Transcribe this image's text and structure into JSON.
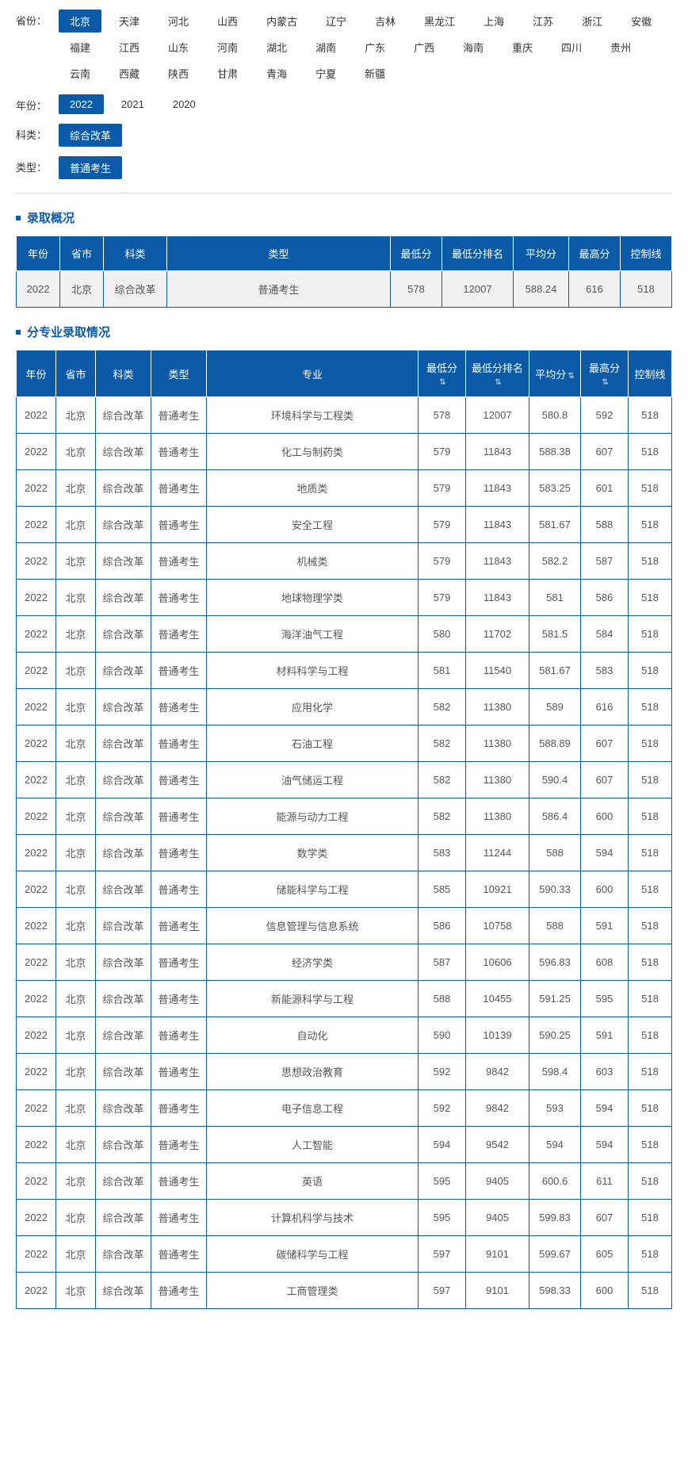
{
  "filters": {
    "province": {
      "label": "省份：",
      "options": [
        "北京",
        "天津",
        "河北",
        "山西",
        "内蒙古",
        "辽宁",
        "吉林",
        "黑龙江",
        "上海",
        "江苏",
        "浙江",
        "安徽",
        "福建",
        "江西",
        "山东",
        "河南",
        "湖北",
        "湖南",
        "广东",
        "广西",
        "海南",
        "重庆",
        "四川",
        "贵州",
        "云南",
        "西藏",
        "陕西",
        "甘肃",
        "青海",
        "宁夏",
        "新疆"
      ],
      "active": 0
    },
    "year": {
      "label": "年份：",
      "options": [
        "2022",
        "2021",
        "2020"
      ],
      "active": 0
    },
    "subject": {
      "label": "科类：",
      "options": [
        "综合改革"
      ],
      "active": 0
    },
    "type": {
      "label": "类型：",
      "options": [
        "普通考生"
      ],
      "active": 0
    }
  },
  "overview": {
    "title": "录取概况",
    "columns": [
      "年份",
      "省市",
      "科类",
      "类型",
      "最低分",
      "最低分排名",
      "平均分",
      "最高分",
      "控制线"
    ],
    "rows": [
      [
        "2022",
        "北京",
        "综合改革",
        "普通考生",
        "578",
        "12007",
        "588.24",
        "616",
        "518"
      ]
    ]
  },
  "detail": {
    "title": "分专业录取情况",
    "columns": [
      "年份",
      "省市",
      "科类",
      "类型",
      "专业",
      "最低分",
      "最低分排名",
      "平均分",
      "最高分",
      "控制线"
    ],
    "sortable": [
      false,
      false,
      false,
      false,
      false,
      true,
      true,
      true,
      true,
      false
    ],
    "rows": [
      [
        "2022",
        "北京",
        "综合改革",
        "普通考生",
        "环境科学与工程类",
        "578",
        "12007",
        "580.8",
        "592",
        "518"
      ],
      [
        "2022",
        "北京",
        "综合改革",
        "普通考生",
        "化工与制药类",
        "579",
        "11843",
        "588.38",
        "607",
        "518"
      ],
      [
        "2022",
        "北京",
        "综合改革",
        "普通考生",
        "地质类",
        "579",
        "11843",
        "583.25",
        "601",
        "518"
      ],
      [
        "2022",
        "北京",
        "综合改革",
        "普通考生",
        "安全工程",
        "579",
        "11843",
        "581.67",
        "588",
        "518"
      ],
      [
        "2022",
        "北京",
        "综合改革",
        "普通考生",
        "机械类",
        "579",
        "11843",
        "582.2",
        "587",
        "518"
      ],
      [
        "2022",
        "北京",
        "综合改革",
        "普通考生",
        "地球物理学类",
        "579",
        "11843",
        "581",
        "586",
        "518"
      ],
      [
        "2022",
        "北京",
        "综合改革",
        "普通考生",
        "海洋油气工程",
        "580",
        "11702",
        "581.5",
        "584",
        "518"
      ],
      [
        "2022",
        "北京",
        "综合改革",
        "普通考生",
        "材料科学与工程",
        "581",
        "11540",
        "581.67",
        "583",
        "518"
      ],
      [
        "2022",
        "北京",
        "综合改革",
        "普通考生",
        "应用化学",
        "582",
        "11380",
        "589",
        "616",
        "518"
      ],
      [
        "2022",
        "北京",
        "综合改革",
        "普通考生",
        "石油工程",
        "582",
        "11380",
        "588.89",
        "607",
        "518"
      ],
      [
        "2022",
        "北京",
        "综合改革",
        "普通考生",
        "油气储运工程",
        "582",
        "11380",
        "590.4",
        "607",
        "518"
      ],
      [
        "2022",
        "北京",
        "综合改革",
        "普通考生",
        "能源与动力工程",
        "582",
        "11380",
        "586.4",
        "600",
        "518"
      ],
      [
        "2022",
        "北京",
        "综合改革",
        "普通考生",
        "数学类",
        "583",
        "11244",
        "588",
        "594",
        "518"
      ],
      [
        "2022",
        "北京",
        "综合改革",
        "普通考生",
        "储能科学与工程",
        "585",
        "10921",
        "590.33",
        "600",
        "518"
      ],
      [
        "2022",
        "北京",
        "综合改革",
        "普通考生",
        "信息管理与信息系统",
        "586",
        "10758",
        "588",
        "591",
        "518"
      ],
      [
        "2022",
        "北京",
        "综合改革",
        "普通考生",
        "经济学类",
        "587",
        "10606",
        "596.83",
        "608",
        "518"
      ],
      [
        "2022",
        "北京",
        "综合改革",
        "普通考生",
        "新能源科学与工程",
        "588",
        "10455",
        "591.25",
        "595",
        "518"
      ],
      [
        "2022",
        "北京",
        "综合改革",
        "普通考生",
        "自动化",
        "590",
        "10139",
        "590.25",
        "591",
        "518"
      ],
      [
        "2022",
        "北京",
        "综合改革",
        "普通考生",
        "思想政治教育",
        "592",
        "9842",
        "598.4",
        "603",
        "518"
      ],
      [
        "2022",
        "北京",
        "综合改革",
        "普通考生",
        "电子信息工程",
        "592",
        "9842",
        "593",
        "594",
        "518"
      ],
      [
        "2022",
        "北京",
        "综合改革",
        "普通考生",
        "人工智能",
        "594",
        "9542",
        "594",
        "594",
        "518"
      ],
      [
        "2022",
        "北京",
        "综合改革",
        "普通考生",
        "英语",
        "595",
        "9405",
        "600.6",
        "611",
        "518"
      ],
      [
        "2022",
        "北京",
        "综合改革",
        "普通考生",
        "计算机科学与技术",
        "595",
        "9405",
        "599.83",
        "607",
        "518"
      ],
      [
        "2022",
        "北京",
        "综合改革",
        "普通考生",
        "碳储科学与工程",
        "597",
        "9101",
        "599.67",
        "605",
        "518"
      ],
      [
        "2022",
        "北京",
        "综合改革",
        "普通考生",
        "工商管理类",
        "597",
        "9101",
        "598.33",
        "600",
        "518"
      ]
    ]
  },
  "colors": {
    "primary": "#0b5aa8",
    "border": "#0b5aa8",
    "text": "#333333",
    "cell_text": "#555555",
    "overview_row_bg": "#f0f0f0"
  }
}
